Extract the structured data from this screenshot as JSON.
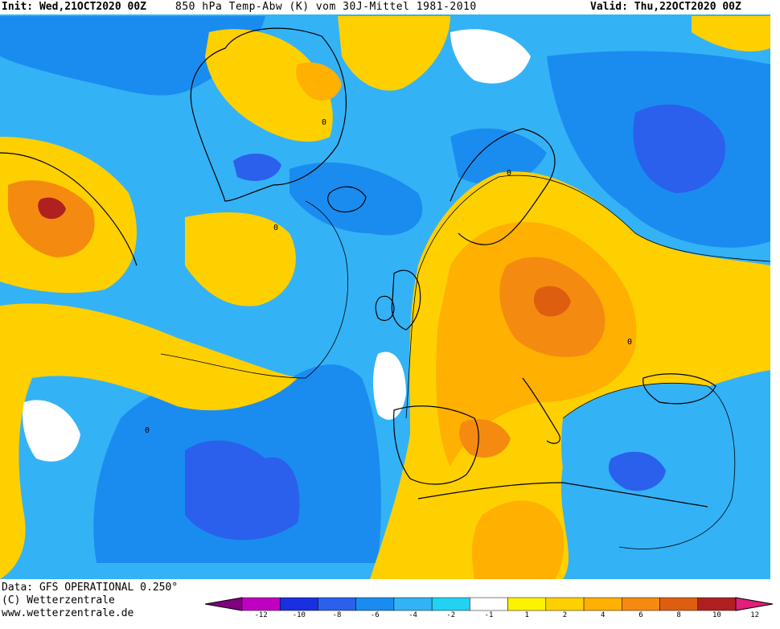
{
  "header": {
    "init": "Init: Wed,21OCT2020 00Z",
    "title": "850 hPa Temp-Abw (K) vom 30J-Mittel 1981-2010",
    "valid": "Valid: Thu,22OCT2020 00Z"
  },
  "footer": {
    "data_source": "Data: GFS OPERATIONAL 0.250°",
    "copyright": "(C) Wetterzentrale",
    "website": "www.wetterzentrale.de"
  },
  "legend": {
    "tick_labels": [
      "-12",
      "-10",
      "-8",
      "-6",
      "-4",
      "-2",
      "-1",
      "1",
      "2",
      "4",
      "6",
      "8",
      "10",
      "12"
    ],
    "colors": [
      "#c000c0",
      "#1a2fe0",
      "#2a60ec",
      "#1a8cf0",
      "#34b2f6",
      "#22d2f2",
      "#ffffff",
      "#fff200",
      "#ffd000",
      "#ffb000",
      "#f58a10",
      "#de5e10",
      "#b02020"
    ],
    "low_arrow_color": "#800080",
    "high_arrow_color": "#e0207a"
  },
  "map": {
    "field": "850 hPa temperature anomaly",
    "region": "North Atlantic and Europe"
  }
}
